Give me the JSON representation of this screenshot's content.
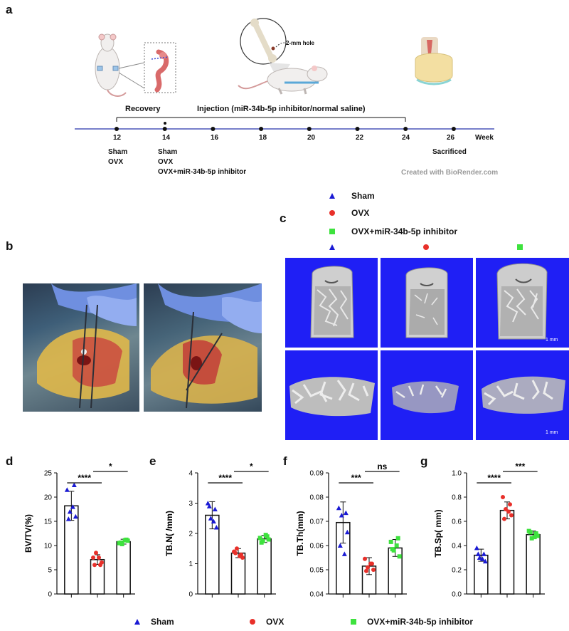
{
  "panels": [
    "a",
    "b",
    "c",
    "d",
    "e",
    "f",
    "g"
  ],
  "timeline": {
    "ticks": [
      "12",
      "14",
      "16",
      "18",
      "20",
      "22",
      "24",
      "26"
    ],
    "unit_label": "Week",
    "recovery_label": "Recovery",
    "injection_label": "Injection (miR-34b-5p inhibitor/normal saline)",
    "week12_groups": [
      "Sham",
      "OVX"
    ],
    "week14_groups": [
      "Sham",
      "OVX",
      "OVX+miR-34b-5p inhibitor"
    ],
    "week26_label": "Sacrificed",
    "hole_label": "2-mm hole",
    "credit": "Created with BioRender.com"
  },
  "groups": [
    {
      "name": "Sham",
      "color": "#1a1ad4",
      "marker": "triangle"
    },
    {
      "name": "OVX",
      "color": "#e8302a",
      "marker": "circle"
    },
    {
      "name": "OVX+miR-34b-5p inhibitor",
      "color": "#3ee23e",
      "marker": "square"
    }
  ],
  "scale_bar": "1 mm",
  "chart_data": [
    {
      "type": "bar",
      "panel": "d",
      "categories": [
        "Sham",
        "OVX",
        "OVX+miR-34b-5p inhibitor"
      ],
      "values": [
        18.2,
        7.1,
        10.8
      ],
      "errors": [
        3.0,
        1.0,
        0.5
      ],
      "points": [
        [
          21.5,
          22.5,
          17.0,
          16.0,
          15.5,
          18.0
        ],
        [
          7.5,
          6.0,
          8.5,
          6.5,
          6.0,
          7.5
        ],
        [
          10.5,
          11.2,
          10.3,
          11.0,
          10.6,
          11.1
        ]
      ],
      "ylabel": "BV/TV(%)",
      "ylim": [
        0,
        25
      ],
      "yticks": [
        "0",
        "5",
        "10",
        "15",
        "20",
        "25"
      ],
      "sig": [
        {
          "pair": [
            0,
            1
          ],
          "label": "****"
        },
        {
          "pair": [
            1,
            2
          ],
          "label": "*"
        }
      ]
    },
    {
      "type": "bar",
      "panel": "e",
      "categories": [
        "Sham",
        "OVX",
        "OVX+miR-34b-5p inhibitor"
      ],
      "values": [
        2.6,
        1.35,
        1.82
      ],
      "errors": [
        0.45,
        0.15,
        0.12
      ],
      "points": [
        [
          3.0,
          2.8,
          2.5,
          2.2,
          2.9,
          2.4
        ],
        [
          1.4,
          1.3,
          1.5,
          1.2,
          1.35,
          1.25
        ],
        [
          1.85,
          1.9,
          1.75,
          1.8,
          1.7,
          1.95
        ]
      ],
      "ylabel": "TB.N( /mm)",
      "ylim": [
        0,
        4
      ],
      "yticks": [
        "0",
        "1",
        "2",
        "3",
        "4"
      ],
      "sig": [
        {
          "pair": [
            0,
            1
          ],
          "label": "****"
        },
        {
          "pair": [
            1,
            2
          ],
          "label": "*"
        }
      ]
    },
    {
      "type": "bar",
      "panel": "f",
      "categories": [
        "Sham",
        "OVX",
        "OVX+miR-34b-5p inhibitor"
      ],
      "values": [
        0.0695,
        0.0515,
        0.059
      ],
      "errors": [
        0.0085,
        0.0035,
        0.0035
      ],
      "points": [
        [
          0.0755,
          0.0735,
          0.0725,
          0.0655,
          0.06,
          0.0565
        ],
        [
          0.0545,
          0.0525,
          0.051,
          0.05,
          0.0495,
          0.0525
        ],
        [
          0.0615,
          0.063,
          0.058,
          0.0555,
          0.0585,
          0.06
        ]
      ],
      "ylabel": "TB.Th(mm)",
      "ylim": [
        0.04,
        0.09
      ],
      "yticks": [
        "0.04",
        "0.05",
        "0.06",
        "0.07",
        "0.08",
        "0.09"
      ],
      "sig": [
        {
          "pair": [
            0,
            1
          ],
          "label": "***"
        },
        {
          "pair": [
            1,
            2
          ],
          "label": "ns"
        }
      ]
    },
    {
      "type": "bar",
      "panel": "g",
      "categories": [
        "Sham",
        "OVX",
        "OVX+miR-34b-5p inhibitor"
      ],
      "values": [
        0.32,
        0.69,
        0.49
      ],
      "errors": [
        0.05,
        0.07,
        0.03
      ],
      "points": [
        [
          0.38,
          0.33,
          0.3,
          0.27,
          0.33,
          0.29
        ],
        [
          0.8,
          0.74,
          0.7,
          0.65,
          0.62,
          0.68
        ],
        [
          0.52,
          0.5,
          0.46,
          0.48,
          0.51,
          0.47
        ]
      ],
      "ylabel": "TB.Sp( mm)",
      "ylim": [
        0,
        1.0
      ],
      "yticks": [
        "0.0",
        "0.2",
        "0.4",
        "0.6",
        "0.8",
        "1.0"
      ],
      "sig": [
        {
          "pair": [
            0,
            1
          ],
          "label": "****"
        },
        {
          "pair": [
            1,
            2
          ],
          "label": "***"
        }
      ]
    }
  ]
}
